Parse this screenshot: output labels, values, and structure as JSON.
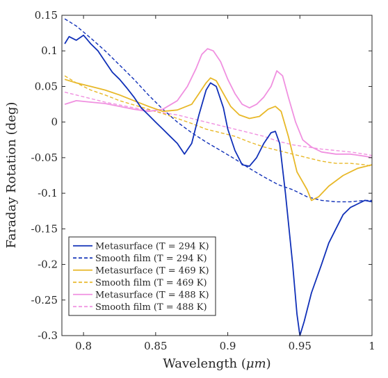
{
  "chart_data": {
    "type": "line",
    "xlabel_prefix": "Wavelength (",
    "xlabel_unit": "μm",
    "xlabel_suffix": ")",
    "ylabel": "Faraday Rotation (deg)",
    "xlim": [
      0.785,
      1.0
    ],
    "ylim": [
      -0.3,
      0.15
    ],
    "xticks": [
      0.8,
      0.85,
      0.9,
      0.95,
      1.0
    ],
    "xtick_labels": [
      "0.8",
      "0.85",
      "0.9",
      "0.95",
      "1"
    ],
    "yticks": [
      0.15,
      0.1,
      0.05,
      0,
      -0.05,
      -0.1,
      -0.15,
      -0.2,
      -0.25,
      -0.3
    ],
    "ytick_labels": [
      "0.15",
      "0.1",
      "0.05",
      "0",
      "-0.05",
      "-0.1",
      "-0.15",
      "-0.2",
      "-0.25",
      "-0.3"
    ],
    "grid": false,
    "legend_position": "bottom-left",
    "series": [
      {
        "name": "Metasurface (T = 294 K)",
        "color": "#1030b8",
        "style": "solid",
        "x": [
          0.787,
          0.79,
          0.795,
          0.8,
          0.805,
          0.81,
          0.815,
          0.82,
          0.825,
          0.83,
          0.835,
          0.84,
          0.845,
          0.85,
          0.855,
          0.86,
          0.865,
          0.87,
          0.875,
          0.88,
          0.885,
          0.888,
          0.892,
          0.897,
          0.9,
          0.905,
          0.91,
          0.915,
          0.92,
          0.925,
          0.93,
          0.933,
          0.936,
          0.94,
          0.945,
          0.948,
          0.95,
          0.953,
          0.958,
          0.965,
          0.97,
          0.975,
          0.98,
          0.985,
          0.99,
          0.995,
          1.0
        ],
        "y": [
          0.11,
          0.12,
          0.115,
          0.122,
          0.11,
          0.1,
          0.085,
          0.07,
          0.06,
          0.048,
          0.035,
          0.02,
          0.01,
          0.0,
          -0.01,
          -0.02,
          -0.03,
          -0.045,
          -0.03,
          0.01,
          0.045,
          0.055,
          0.05,
          0.02,
          -0.01,
          -0.04,
          -0.06,
          -0.062,
          -0.05,
          -0.03,
          -0.015,
          -0.013,
          -0.03,
          -0.1,
          -0.2,
          -0.27,
          -0.3,
          -0.28,
          -0.24,
          -0.2,
          -0.17,
          -0.15,
          -0.13,
          -0.12,
          -0.115,
          -0.11,
          -0.112
        ]
      },
      {
        "name": "Smooth film (T = 294 K)",
        "color": "#1030b8",
        "style": "dashed",
        "x": [
          0.787,
          0.795,
          0.805,
          0.815,
          0.825,
          0.835,
          0.845,
          0.855,
          0.865,
          0.875,
          0.885,
          0.895,
          0.905,
          0.915,
          0.925,
          0.935,
          0.945,
          0.955,
          0.965,
          0.975,
          0.985,
          0.995,
          1.0
        ],
        "y": [
          0.145,
          0.135,
          0.118,
          0.1,
          0.08,
          0.06,
          0.038,
          0.018,
          0.0,
          -0.015,
          -0.028,
          -0.04,
          -0.052,
          -0.065,
          -0.077,
          -0.088,
          -0.095,
          -0.105,
          -0.11,
          -0.112,
          -0.112,
          -0.11,
          -0.11
        ]
      },
      {
        "name": "Metasurface (T = 469 K)",
        "color": "#e8b828",
        "style": "solid",
        "x": [
          0.787,
          0.795,
          0.805,
          0.815,
          0.825,
          0.835,
          0.845,
          0.855,
          0.865,
          0.875,
          0.88,
          0.885,
          0.888,
          0.892,
          0.897,
          0.902,
          0.908,
          0.915,
          0.922,
          0.928,
          0.933,
          0.937,
          0.942,
          0.948,
          0.955,
          0.958,
          0.963,
          0.97,
          0.98,
          0.99,
          1.0
        ],
        "y": [
          0.06,
          0.055,
          0.05,
          0.045,
          0.038,
          0.03,
          0.022,
          0.015,
          0.017,
          0.025,
          0.04,
          0.055,
          0.062,
          0.058,
          0.04,
          0.022,
          0.01,
          0.005,
          0.008,
          0.018,
          0.022,
          0.015,
          -0.02,
          -0.07,
          -0.095,
          -0.11,
          -0.105,
          -0.09,
          -0.075,
          -0.065,
          -0.06
        ]
      },
      {
        "name": "Smooth film (T = 469 K)",
        "color": "#e8b828",
        "style": "dashed",
        "x": [
          0.787,
          0.795,
          0.805,
          0.815,
          0.825,
          0.835,
          0.845,
          0.855,
          0.865,
          0.875,
          0.885,
          0.895,
          0.905,
          0.915,
          0.925,
          0.935,
          0.945,
          0.955,
          0.965,
          0.975,
          0.985,
          0.995,
          1.0
        ],
        "y": [
          0.065,
          0.055,
          0.045,
          0.038,
          0.03,
          0.024,
          0.018,
          0.012,
          0.005,
          -0.002,
          -0.01,
          -0.015,
          -0.02,
          -0.028,
          -0.035,
          -0.04,
          -0.045,
          -0.05,
          -0.055,
          -0.058,
          -0.058,
          -0.06,
          -0.062
        ]
      },
      {
        "name": "Metasurface (T = 488 K)",
        "color": "#f090e0",
        "style": "solid",
        "x": [
          0.787,
          0.795,
          0.805,
          0.815,
          0.825,
          0.835,
          0.845,
          0.855,
          0.865,
          0.872,
          0.878,
          0.882,
          0.886,
          0.89,
          0.895,
          0.9,
          0.905,
          0.91,
          0.915,
          0.92,
          0.925,
          0.93,
          0.934,
          0.938,
          0.942,
          0.947,
          0.952,
          0.958,
          0.965,
          0.975,
          0.985,
          0.995,
          1.0
        ],
        "y": [
          0.025,
          0.03,
          0.028,
          0.026,
          0.022,
          0.018,
          0.015,
          0.018,
          0.03,
          0.05,
          0.075,
          0.095,
          0.103,
          0.1,
          0.085,
          0.06,
          0.04,
          0.025,
          0.02,
          0.025,
          0.035,
          0.05,
          0.072,
          0.065,
          0.035,
          0.0,
          -0.025,
          -0.035,
          -0.042,
          -0.045,
          -0.045,
          -0.048,
          -0.05
        ]
      },
      {
        "name": "Smooth film (T = 488 K)",
        "color": "#f090e0",
        "style": "dashed",
        "x": [
          0.787,
          0.795,
          0.805,
          0.815,
          0.825,
          0.835,
          0.845,
          0.855,
          0.865,
          0.875,
          0.885,
          0.895,
          0.905,
          0.915,
          0.925,
          0.935,
          0.945,
          0.955,
          0.965,
          0.975,
          0.985,
          0.995,
          1.0
        ],
        "y": [
          0.042,
          0.038,
          0.033,
          0.028,
          0.024,
          0.02,
          0.017,
          0.013,
          0.01,
          0.005,
          0.0,
          -0.005,
          -0.01,
          -0.015,
          -0.02,
          -0.027,
          -0.032,
          -0.035,
          -0.038,
          -0.04,
          -0.042,
          -0.045,
          -0.047
        ]
      }
    ]
  }
}
